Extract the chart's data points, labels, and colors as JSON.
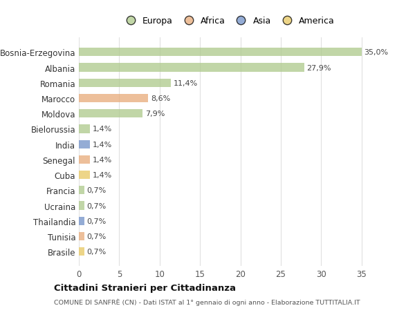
{
  "categories": [
    "Bosnia-Erzegovina",
    "Albania",
    "Romania",
    "Marocco",
    "Moldova",
    "Bielorussia",
    "India",
    "Senegal",
    "Cuba",
    "Francia",
    "Ucraina",
    "Thailandia",
    "Tunisia",
    "Brasile"
  ],
  "values": [
    35.0,
    27.9,
    11.4,
    8.6,
    7.9,
    1.4,
    1.4,
    1.4,
    1.4,
    0.7,
    0.7,
    0.7,
    0.7,
    0.7
  ],
  "labels": [
    "35,0%",
    "27,9%",
    "11,4%",
    "8,6%",
    "7,9%",
    "1,4%",
    "1,4%",
    "1,4%",
    "1,4%",
    "0,7%",
    "0,7%",
    "0,7%",
    "0,7%",
    "0,7%"
  ],
  "bar_colors": [
    "#adc98a",
    "#adc98a",
    "#adc98a",
    "#e8aa78",
    "#adc98a",
    "#adc98a",
    "#7090c8",
    "#e8aa78",
    "#e8c860",
    "#adc98a",
    "#adc98a",
    "#7090c8",
    "#e8aa78",
    "#e8c860"
  ],
  "legend_labels": [
    "Europa",
    "Africa",
    "Asia",
    "America"
  ],
  "legend_colors": [
    "#adc98a",
    "#e8aa78",
    "#7090c8",
    "#e8c860"
  ],
  "title": "Cittadini Stranieri per Cittadinanza",
  "subtitle": "COMUNE DI SANFRÈ (CN) - Dati ISTAT al 1° gennaio di ogni anno - Elaborazione TUTTITALIA.IT",
  "xlim": [
    0,
    37
  ],
  "xticks": [
    0,
    5,
    10,
    15,
    20,
    25,
    30,
    35
  ],
  "background_color": "#ffffff",
  "grid_color": "#e0e0e0",
  "bar_height": 0.55,
  "bar_alpha": 0.75
}
